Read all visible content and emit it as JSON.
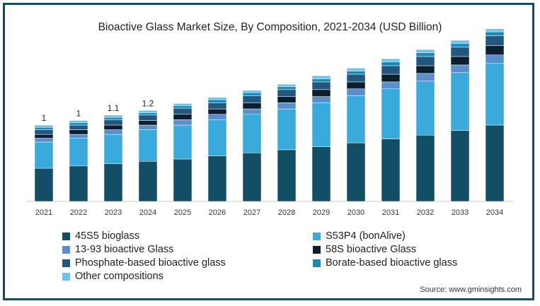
{
  "chart_data": {
    "type": "bar",
    "stacked": true,
    "title": "Bioactive Glass Market Size, By Composition, 2021-2034 (USD Billion)",
    "xlabel": "",
    "ylabel": "",
    "ylim": [
      0,
      2.2
    ],
    "grid": false,
    "legend_position": "bottom",
    "categories": [
      "2021",
      "2022",
      "2023",
      "2024",
      "2025",
      "2026",
      "2027",
      "2028",
      "2029",
      "2030",
      "2031",
      "2032",
      "2033",
      "2034"
    ],
    "series": [
      {
        "name": "45S5 bioglass",
        "color": "#124e66",
        "values": [
          0.43,
          0.46,
          0.49,
          0.52,
          0.55,
          0.59,
          0.63,
          0.67,
          0.71,
          0.76,
          0.81,
          0.86,
          0.92,
          0.99
        ]
      },
      {
        "name": "S53P4 (bonAlive)",
        "color": "#3aa9dc",
        "values": [
          0.34,
          0.36,
          0.38,
          0.41,
          0.44,
          0.47,
          0.5,
          0.53,
          0.57,
          0.61,
          0.65,
          0.7,
          0.75,
          0.8
        ]
      },
      {
        "name": "13-93 bioactive Glass",
        "color": "#5b8fc9",
        "values": [
          0.05,
          0.05,
          0.06,
          0.06,
          0.07,
          0.07,
          0.07,
          0.08,
          0.08,
          0.09,
          0.09,
          0.1,
          0.1,
          0.11
        ]
      },
      {
        "name": "58S bioactive Glass",
        "color": "#0b1f2e",
        "values": [
          0.05,
          0.06,
          0.06,
          0.06,
          0.07,
          0.07,
          0.08,
          0.08,
          0.09,
          0.09,
          0.1,
          0.1,
          0.11,
          0.12
        ]
      },
      {
        "name": "Phosphate-based bioactive glass",
        "color": "#23577f",
        "values": [
          0.06,
          0.06,
          0.07,
          0.07,
          0.08,
          0.08,
          0.09,
          0.09,
          0.1,
          0.1,
          0.11,
          0.12,
          0.12,
          0.13
        ]
      },
      {
        "name": "Borate-based bioactive glass",
        "color": "#1c8ab5",
        "values": [
          0.03,
          0.03,
          0.03,
          0.03,
          0.03,
          0.04,
          0.04,
          0.04,
          0.04,
          0.04,
          0.05,
          0.05,
          0.05,
          0.05
        ]
      },
      {
        "name": "Other compositions",
        "color": "#6fc3ea",
        "values": [
          0.03,
          0.03,
          0.03,
          0.03,
          0.03,
          0.03,
          0.03,
          0.03,
          0.04,
          0.04,
          0.04,
          0.04,
          0.04,
          0.04
        ]
      }
    ],
    "data_labels": [
      "1",
      "1",
      "1.1",
      "1.2",
      "",
      "",
      "",
      "",
      "",
      "",
      "",
      "",
      "",
      ""
    ]
  },
  "source": "Source: www.gminsights.com"
}
